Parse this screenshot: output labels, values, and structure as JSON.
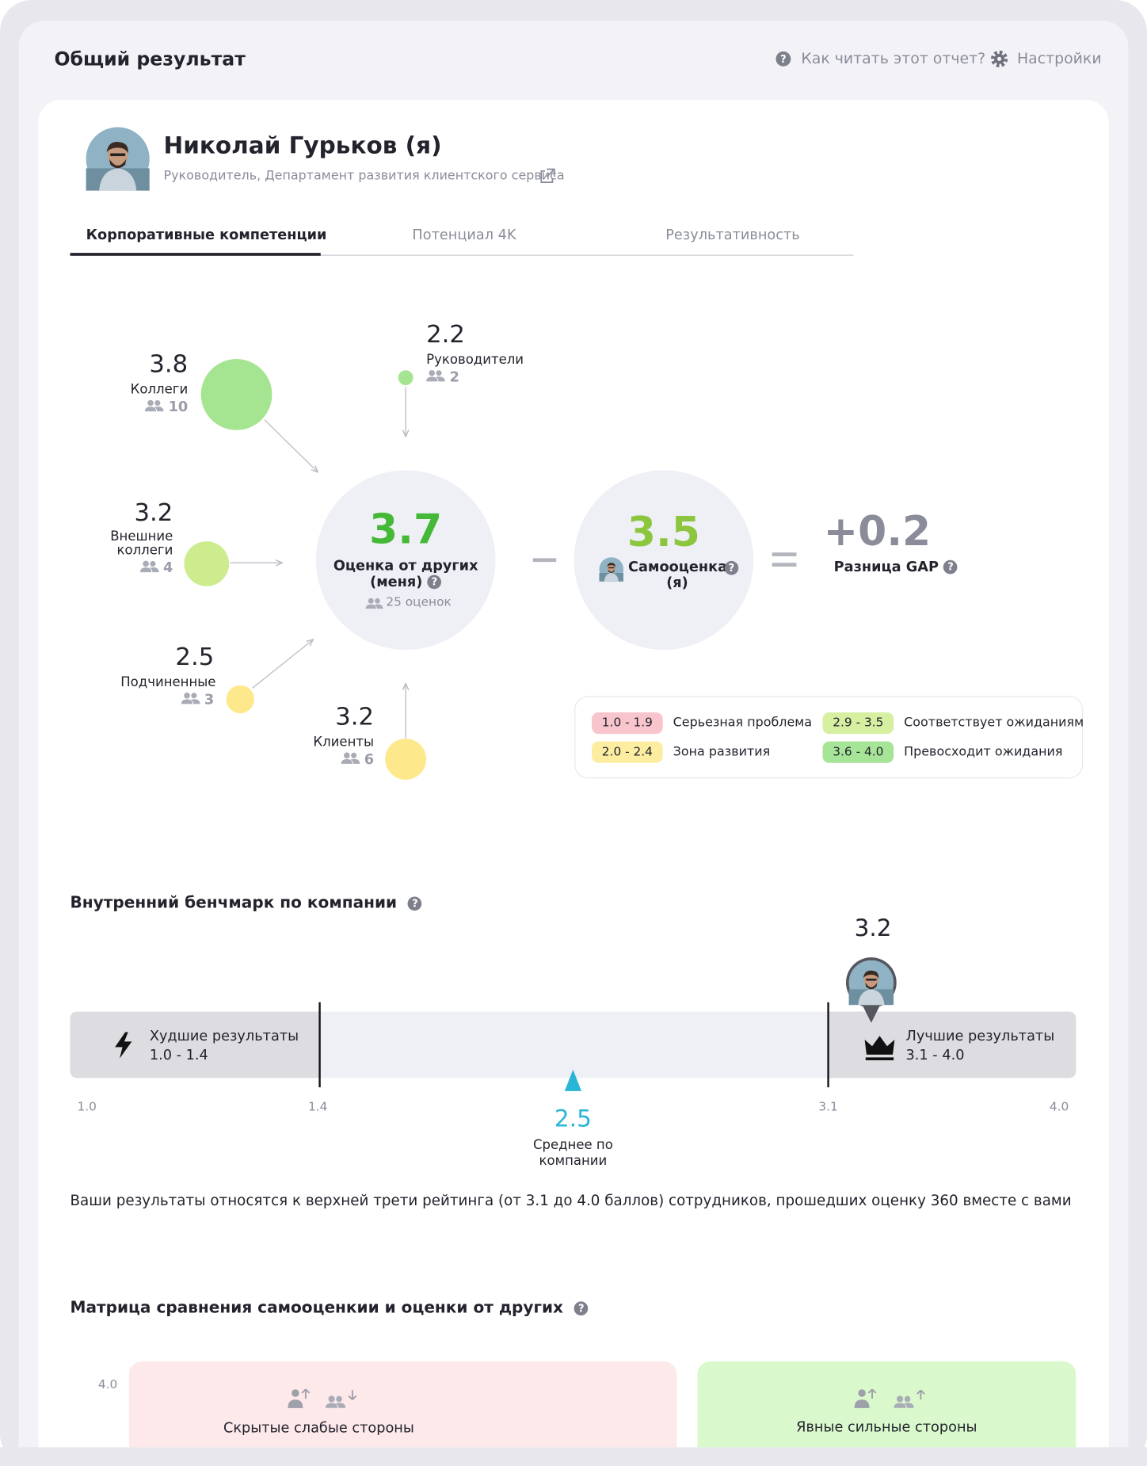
{
  "header": {
    "title": "Общий результат",
    "help": "Как читать этот отчет?",
    "settings": "Настройки"
  },
  "profile": {
    "name": "Николай Гурьков (я)",
    "role": "Руководитель,",
    "department": "Департамент развития клиентского сервиса"
  },
  "tabs": [
    "Корпоративные компетенции",
    "Потенциал 4K",
    "Результативность"
  ],
  "groups": [
    {
      "label": "Коллеги",
      "score": 3.8,
      "count": 10,
      "color": "#a5e591"
    },
    {
      "label": "Руководители",
      "score": 2.2,
      "count": 2,
      "color": "#a5e591"
    },
    {
      "label": "Внешние коллеги",
      "score": 3.2,
      "count": 4,
      "color": "#cdec8d"
    },
    {
      "label": "Подчиненные",
      "score": 2.5,
      "count": 3,
      "color": "#fde98c"
    },
    {
      "label": "Клиенты",
      "score": 3.2,
      "count": 6,
      "color": "#fde98c"
    }
  ],
  "summary": {
    "others_score": 3.7,
    "others_label": "Оценка от других (меня)",
    "others_count": "25 оценок",
    "self_score": 3.5,
    "self_label": "Самооценка (я)",
    "gap": "+0.2",
    "gap_label": "Разница GAP"
  },
  "legend": [
    {
      "range": "1.0 - 1.9",
      "label": "Серьезная проблема",
      "color": "#f9c5cc"
    },
    {
      "range": "2.0 - 2.4",
      "label": "Зона развития",
      "color": "#fdeda0"
    },
    {
      "range": "2.9 - 3.5",
      "label": "Соответствует ожиданиям",
      "color": "#d6efa1"
    },
    {
      "range": "3.6 - 4.0",
      "label": "Превосходит ожидания",
      "color": "#a6e497"
    }
  ],
  "benchmark": {
    "title": "Внутренний бенчмарк по компании",
    "worst_label": "Худшие результаты",
    "worst_range": "1.0 - 1.4",
    "best_label": "Лучшие результаты",
    "best_range": "3.1 - 4.0",
    "ticks": [
      "1.0",
      "1.4",
      "3.1",
      "4.0"
    ],
    "my_score": 3.2,
    "average": 2.5,
    "average_label": "Среднее по компании",
    "note": "Ваши результаты относятся к верхней трети рейтинга (от 3.1 до 4.0 баллов) сотрудников, прошедших оценку 360 вместе с вами"
  },
  "matrix": {
    "title": "Матрица сравнения самооценкии и оценки от других",
    "y_top": "4.0",
    "quadrants": [
      "Скрытые слабые стороны",
      "Явные сильные стороны"
    ]
  }
}
